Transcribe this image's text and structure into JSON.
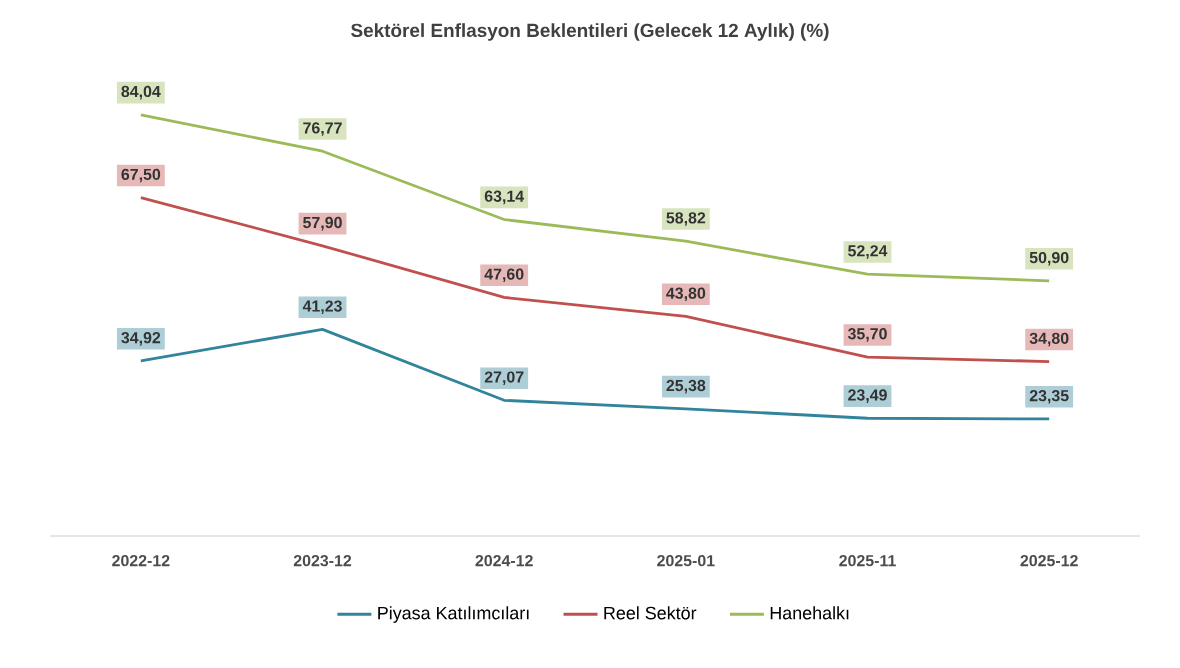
{
  "chart_data": {
    "type": "line",
    "title": "Sektörel Enflasyon Beklentileri (Gelecek 12 Aylık) (%)",
    "categories": [
      "2022-12",
      "2023-12",
      "2024-12",
      "2025-01",
      "2025-11",
      "2025-12"
    ],
    "series": [
      {
        "name": "Piyasa Katılımcıları",
        "color": "#31849b",
        "values": [
          34.92,
          41.23,
          27.07,
          25.38,
          23.49,
          23.35
        ],
        "value_labels": [
          "34,92",
          "41,23",
          "27,07",
          "25,38",
          "23,49",
          "23,35"
        ]
      },
      {
        "name": "Reel Sektör",
        "color": "#c0504d",
        "values": [
          67.5,
          57.9,
          47.6,
          43.8,
          35.7,
          34.8
        ],
        "value_labels": [
          "67,50",
          "57,90",
          "47,60",
          "43,80",
          "35,70",
          "34,80"
        ]
      },
      {
        "name": "Hanehalkı",
        "color": "#9bbb59",
        "values": [
          84.04,
          76.77,
          63.14,
          58.82,
          52.24,
          50.9
        ],
        "value_labels": [
          "84,04",
          "76,77",
          "63,14",
          "58,82",
          "52,24",
          "50,90"
        ]
      }
    ],
    "legend": "bottom",
    "grid": false,
    "marker": "none",
    "line_style": "solid"
  }
}
